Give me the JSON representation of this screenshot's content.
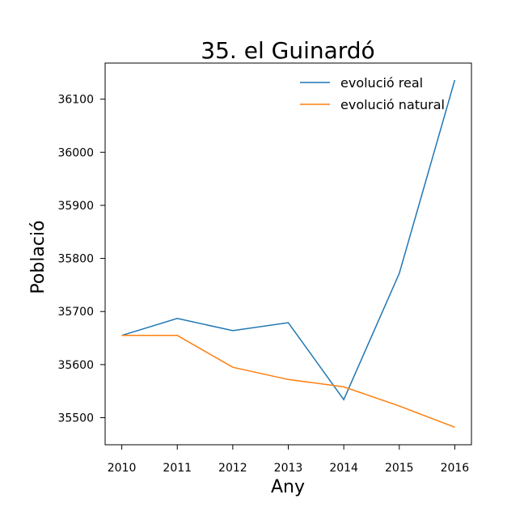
{
  "chart_data": {
    "type": "line",
    "title": "35. el Guinardó",
    "xlabel": "Any",
    "ylabel": "Població",
    "x": [
      2010,
      2011,
      2012,
      2013,
      2014,
      2015,
      2016
    ],
    "x_ticks": [
      "2010",
      "2011",
      "2012",
      "2013",
      "2014",
      "2015",
      "2016"
    ],
    "y_ticks": [
      35500,
      35600,
      35700,
      35800,
      35900,
      36000,
      36100
    ],
    "y_tick_labels": [
      "35500",
      "35600",
      "35700",
      "35800",
      "35900",
      "36000",
      "36100"
    ],
    "xlim": [
      2009.7,
      2016.3
    ],
    "ylim": [
      35449,
      36168
    ],
    "grid": false,
    "legend_position": "top-right",
    "series": [
      {
        "name": "evolució real",
        "color": "#1f77b4",
        "values": [
          35655,
          35687,
          35664,
          35679,
          35534,
          35772,
          36136
        ]
      },
      {
        "name": "evolució natural",
        "color": "#ff7f0e",
        "values": [
          35655,
          35655,
          35595,
          35572,
          35558,
          35522,
          35482
        ]
      }
    ]
  }
}
